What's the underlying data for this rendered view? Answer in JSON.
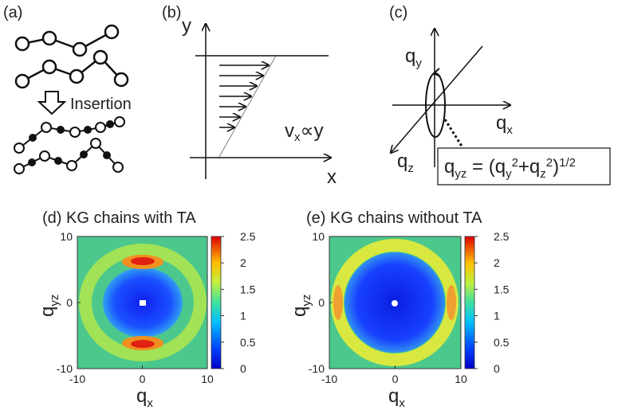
{
  "panel_a": {
    "label": "(a)",
    "arrow_text": "Insertion"
  },
  "panel_b": {
    "label": "(b)",
    "y_axis": "y",
    "x_axis": "x",
    "relation": [
      "v",
      "x",
      "∝y"
    ]
  },
  "panel_c": {
    "label": "(c)",
    "qy": [
      "q",
      "y"
    ],
    "qx": [
      "q",
      "x"
    ],
    "qz": [
      "q",
      "z"
    ],
    "formula": [
      "q",
      "yz",
      " = (q",
      "y",
      "2",
      "+q",
      "z",
      "2",
      ")",
      "1/2"
    ]
  },
  "heatmaps": [
    {
      "title": "(d) KG chains with TA",
      "xlabel": [
        "q",
        "x"
      ],
      "ylabel": [
        "q",
        "yz"
      ],
      "xlim": [
        -10,
        10
      ],
      "ylim": [
        -10,
        10
      ],
      "xticks": [
        -10,
        0,
        10
      ],
      "yticks": [
        -10,
        0,
        10
      ],
      "colorbar_range": [
        0,
        2.5
      ],
      "colorbar_ticks": [
        0,
        0.5,
        1,
        1.5,
        2,
        2.5
      ]
    },
    {
      "title": "(e) KG chains without TA",
      "xlabel": [
        "q",
        "x"
      ],
      "ylabel": [
        "q",
        "yz"
      ],
      "xlim": [
        -10,
        10
      ],
      "ylim": [
        -10,
        10
      ],
      "xticks": [
        -10,
        0,
        10
      ],
      "yticks": [
        -10,
        0,
        10
      ],
      "colorbar_range": [
        0,
        2.5
      ],
      "colorbar_ticks": [
        0,
        0.5,
        1,
        1.5,
        2,
        2.5
      ]
    }
  ]
}
